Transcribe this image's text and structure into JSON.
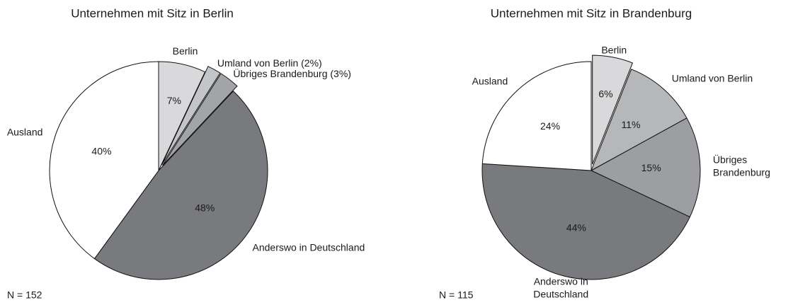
{
  "chart_data": [
    {
      "type": "pie",
      "title": "Unternehmen mit Sitz in Berlin",
      "categories": [
        "Berlin",
        "Umland von Berlin (2%)",
        "Übriges Brandenburg (3%)",
        "Anderswo in Deutschland",
        "Ausland"
      ],
      "values": [
        7,
        2,
        3,
        48,
        40
      ],
      "value_labels": [
        "7%",
        null,
        null,
        "48%",
        "40%"
      ],
      "colors": [
        "#d9d9db",
        "#c4c5c7",
        "#a3a4a7",
        "#797a7e",
        "#ffffff"
      ],
      "exploded": [
        false,
        true,
        true,
        false,
        false
      ],
      "note": "N = 152"
    },
    {
      "type": "pie",
      "title": "Unternehmen mit Sitz in Brandenburg",
      "categories": [
        "Berlin",
        "Umland von Berlin",
        "Übriges\nBrandenburg",
        "Anderswo in\nDeutschland",
        "Ausland"
      ],
      "values": [
        6,
        11,
        15,
        44,
        24
      ],
      "value_labels": [
        "6%",
        "11%",
        "15%",
        "44%",
        "24%"
      ],
      "colors": [
        "#d9d9db",
        "#b6b7b9",
        "#9d9ea1",
        "#797a7e",
        "#ffffff"
      ],
      "exploded": [
        true,
        false,
        false,
        false,
        false
      ],
      "note": "N = 115"
    }
  ]
}
